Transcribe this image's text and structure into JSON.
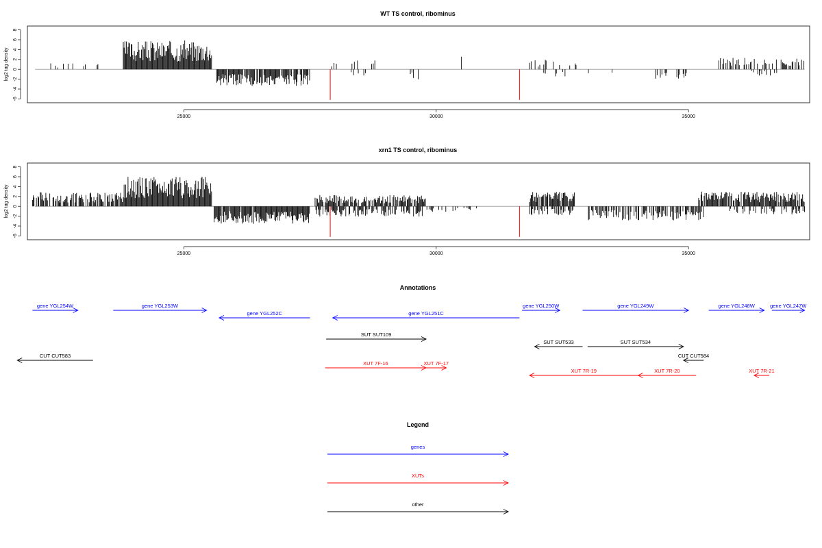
{
  "colors": {
    "genes": "#0000ff",
    "xuts": "#ff0000",
    "other": "#000000",
    "baseline": "#999999",
    "marker": "#ff0000"
  },
  "chart_data": [
    {
      "type": "bar",
      "title": "WT TS control, ribominus",
      "ylabel": "log2 tag density",
      "xlim": [
        21900,
        37400
      ],
      "ylim": [
        -6.5,
        8.5
      ],
      "xticks": [
        25000,
        30000,
        35000
      ],
      "yticks": [
        -6,
        -4,
        -2,
        0,
        2,
        4,
        6,
        8
      ],
      "markers": [
        27900,
        31650
      ],
      "marker_depth": -6.2,
      "segments": [
        {
          "from": 22300,
          "to": 22800,
          "value": 1.0,
          "density": 0.25,
          "seed": 1
        },
        {
          "from": 23000,
          "to": 23300,
          "value": 1.3,
          "density": 0.2,
          "seed": 2
        },
        {
          "from": 23800,
          "to": 25550,
          "value": 4.5,
          "density": 1.0,
          "seed": 3
        },
        {
          "from": 25650,
          "to": 27500,
          "value": -2.6,
          "density": 0.85,
          "seed": 4
        },
        {
          "from": 27850,
          "to": 28100,
          "value": 1.2,
          "density": 0.15,
          "seed": 5
        },
        {
          "from": 28300,
          "to": 28800,
          "value": 1.4,
          "density": 0.15,
          "seed": 6
        },
        {
          "from": 28300,
          "to": 28800,
          "value": -1.0,
          "density": 0.15,
          "seed": 7
        },
        {
          "from": 29300,
          "to": 29800,
          "value": -1.8,
          "density": 0.2,
          "seed": 8
        },
        {
          "from": 30500,
          "to": 30550,
          "value": 2.5,
          "density": 0.3,
          "seed": 9
        },
        {
          "from": 31850,
          "to": 32800,
          "value": 1.6,
          "density": 0.3,
          "seed": 10
        },
        {
          "from": 32100,
          "to": 32800,
          "value": -1.3,
          "density": 0.2,
          "seed": 11
        },
        {
          "from": 33000,
          "to": 33500,
          "value": -1.2,
          "density": 0.1,
          "seed": 12
        },
        {
          "from": 34300,
          "to": 35000,
          "value": -1.6,
          "density": 0.25,
          "seed": 13
        },
        {
          "from": 35600,
          "to": 37300,
          "value": 1.8,
          "density": 0.45,
          "seed": 14
        },
        {
          "from": 36200,
          "to": 36900,
          "value": -1.0,
          "density": 0.15,
          "seed": 15
        }
      ]
    },
    {
      "type": "bar",
      "title": "xrn1 TS control, ribominus",
      "ylabel": "log2 tag density",
      "xlim": [
        21900,
        37400
      ],
      "ylim": [
        -6.5,
        8.5
      ],
      "xticks": [
        25000,
        30000,
        35000
      ],
      "yticks": [
        -6,
        -4,
        -2,
        0,
        2,
        4,
        6,
        8
      ],
      "markers": [
        27900,
        31650
      ],
      "marker_depth": -6.2,
      "segments": [
        {
          "from": 22000,
          "to": 23800,
          "value": 2.2,
          "density": 0.75,
          "seed": 21
        },
        {
          "from": 23800,
          "to": 25550,
          "value": 4.6,
          "density": 1.0,
          "seed": 22
        },
        {
          "from": 25600,
          "to": 27500,
          "value": -2.8,
          "density": 0.95,
          "seed": 23
        },
        {
          "from": 27600,
          "to": 29800,
          "value": 1.8,
          "density": 0.8,
          "seed": 24
        },
        {
          "from": 27600,
          "to": 29800,
          "value": -1.6,
          "density": 0.6,
          "seed": 25
        },
        {
          "from": 29800,
          "to": 30800,
          "value": -1.0,
          "density": 0.3,
          "seed": 26
        },
        {
          "from": 31850,
          "to": 32750,
          "value": 2.3,
          "density": 0.85,
          "seed": 27
        },
        {
          "from": 31850,
          "to": 32750,
          "value": -1.4,
          "density": 0.5,
          "seed": 28
        },
        {
          "from": 33000,
          "to": 35300,
          "value": -2.2,
          "density": 0.65,
          "seed": 29
        },
        {
          "from": 35200,
          "to": 37300,
          "value": 2.3,
          "density": 0.85,
          "seed": 30
        },
        {
          "from": 35800,
          "to": 37300,
          "value": -1.3,
          "density": 0.35,
          "seed": 31
        }
      ]
    }
  ],
  "annotations": {
    "title": "Annotations",
    "xlim": [
      21900,
      37400
    ],
    "features": [
      {
        "label": "gene YGL254W",
        "start": 22000,
        "end": 22900,
        "strand": "+",
        "kind": "gene",
        "row": 1
      },
      {
        "label": "gene YGL253W",
        "start": 23600,
        "end": 25450,
        "strand": "+",
        "kind": "gene",
        "row": 1
      },
      {
        "label": "gene YGL252C",
        "start": 25700,
        "end": 27500,
        "strand": "-",
        "kind": "gene",
        "row": 2
      },
      {
        "label": "gene YGL251C",
        "start": 27950,
        "end": 31650,
        "strand": "-",
        "kind": "gene",
        "row": 2
      },
      {
        "label": "gene YGL250W",
        "start": 31700,
        "end": 32450,
        "strand": "+",
        "kind": "gene",
        "row": 1
      },
      {
        "label": "gene YGL249W",
        "start": 32900,
        "end": 35000,
        "strand": "+",
        "kind": "gene",
        "row": 1
      },
      {
        "label": "gene YGL248W",
        "start": 35400,
        "end": 36500,
        "strand": "+",
        "kind": "gene",
        "row": 1
      },
      {
        "label": "gene YGL247W",
        "start": 36650,
        "end": 37300,
        "strand": "+",
        "kind": "gene",
        "row": 1
      },
      {
        "label": "SUT SUT109",
        "start": 27820,
        "end": 29800,
        "strand": "+",
        "kind": "other",
        "row": 3
      },
      {
        "label": "SUT SUT533",
        "start": 31950,
        "end": 32900,
        "strand": "-",
        "kind": "other",
        "row": 4
      },
      {
        "label": "SUT SUT534",
        "start": 33000,
        "end": 34900,
        "strand": "+",
        "kind": "other",
        "row": 4
      },
      {
        "label": "CUT CUT583",
        "start": 21700,
        "end": 23200,
        "strand": "-",
        "kind": "other",
        "row": 5
      },
      {
        "label": "CUT CUT584",
        "start": 34900,
        "end": 35300,
        "strand": "-",
        "kind": "other",
        "row": 5
      },
      {
        "label": "XUT 7F-16",
        "start": 27800,
        "end": 29800,
        "strand": "+",
        "kind": "xut",
        "row": 6
      },
      {
        "label": "XUT 7F-17",
        "start": 29800,
        "end": 30200,
        "strand": "+",
        "kind": "xut",
        "row": 6
      },
      {
        "label": "XUT 7R-19",
        "start": 31850,
        "end": 34000,
        "strand": "-",
        "kind": "xut",
        "row": 7
      },
      {
        "label": "XUT 7R-20",
        "start": 34000,
        "end": 35150,
        "strand": "-",
        "kind": "xut",
        "row": 7
      },
      {
        "label": "XUT 7R-21",
        "start": 36300,
        "end": 36600,
        "strand": "-",
        "kind": "xut",
        "row": 7
      }
    ]
  },
  "legend": {
    "title": "Legend",
    "items": [
      {
        "label": "genes",
        "kind": "gene"
      },
      {
        "label": "XUTs",
        "kind": "xut"
      },
      {
        "label": "other",
        "kind": "other"
      }
    ]
  }
}
